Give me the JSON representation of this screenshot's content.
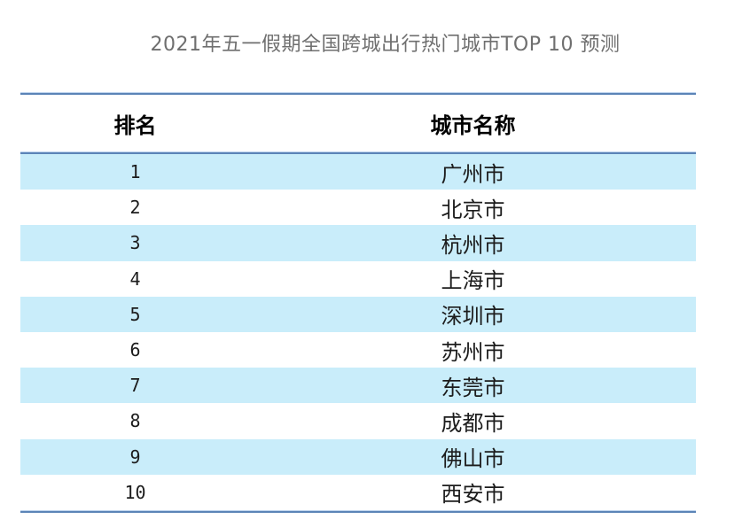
{
  "title": "2021年五一假期全国跨城出行热门城市TOP 10 预测",
  "table": {
    "columns": [
      "排名",
      "城市名称"
    ],
    "rows": [
      {
        "rank": "1",
        "city": "广州市"
      },
      {
        "rank": "2",
        "city": "北京市"
      },
      {
        "rank": "3",
        "city": "杭州市"
      },
      {
        "rank": "4",
        "city": "上海市"
      },
      {
        "rank": "5",
        "city": "深圳市"
      },
      {
        "rank": "6",
        "city": "苏州市"
      },
      {
        "rank": "7",
        "city": "东莞市"
      },
      {
        "rank": "8",
        "city": "成都市"
      },
      {
        "rank": "9",
        "city": "佛山市"
      },
      {
        "rank": "10",
        "city": "西安市"
      }
    ]
  },
  "colors": {
    "accent_line": "#5b84b7",
    "accent_line_light": "#bfd4ee",
    "row_alt_bg": "#c9edfa",
    "title_color": "#6f6f6f",
    "text_color": "#1c1c1c",
    "header_text_color": "#000000"
  },
  "chart_data": {
    "type": "table",
    "title": "2021年五一假期全国跨城出行热门城市TOP 10 预测",
    "columns": [
      "排名",
      "城市名称"
    ],
    "rows": [
      [
        1,
        "广州市"
      ],
      [
        2,
        "北京市"
      ],
      [
        3,
        "杭州市"
      ],
      [
        4,
        "上海市"
      ],
      [
        5,
        "深圳市"
      ],
      [
        6,
        "苏州市"
      ],
      [
        7,
        "东莞市"
      ],
      [
        8,
        "成都市"
      ],
      [
        9,
        "佛山市"
      ],
      [
        10,
        "西安市"
      ]
    ],
    "layout": {
      "header_row": true,
      "zebra_striping": "odd-rows-highlighted",
      "column_alignment": [
        "center",
        "center"
      ]
    }
  }
}
